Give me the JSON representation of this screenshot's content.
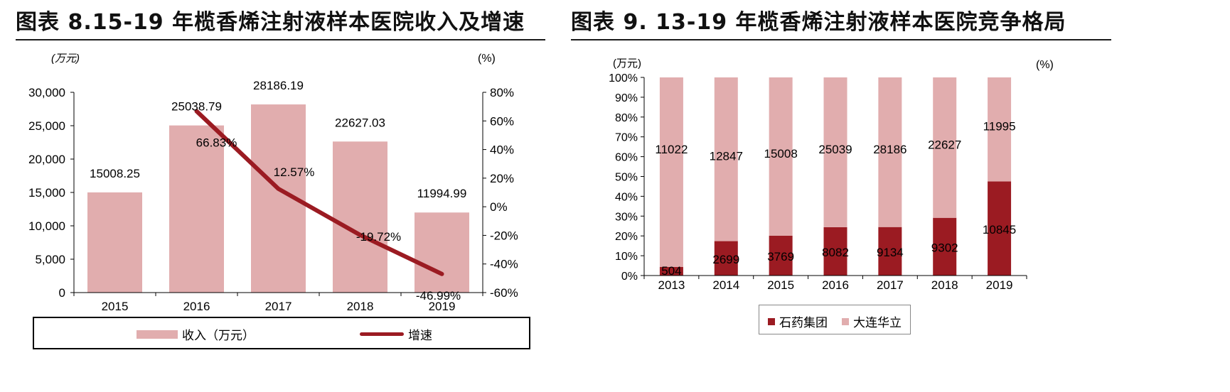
{
  "left": {
    "title": "图表 8.15-19 年榄香烯注射液样本医院收入及增速",
    "unit_left": "(万元)",
    "unit_right": "(%)",
    "legend": {
      "bar": "收入（万元）",
      "line": "增速"
    }
  },
  "right": {
    "title": "图表 9. 13-19 年榄香烯注射液样本医院竞争格局",
    "unit_left": "(万元)",
    "unit_right": "(%)"
  },
  "colors": {
    "bar_light": "#e1adae",
    "line_dark": "#9b1b22",
    "bar_dark": "#9b1b22"
  },
  "chart_data": [
    {
      "type": "bar",
      "categories": [
        "2015",
        "2016",
        "2017",
        "2018",
        "2019"
      ],
      "series": [
        {
          "name": "收入（万元）",
          "values": [
            15008.25,
            25038.79,
            28186.19,
            22627.03,
            11994.99
          ],
          "labels": [
            "15008.25",
            "25038.79",
            "28186.19",
            "22627.03",
            "11994.99"
          ],
          "axis": "left",
          "kind": "bar"
        },
        {
          "name": "增速",
          "x": [
            "2016",
            "2017",
            "2018",
            "2019"
          ],
          "values": [
            66.83,
            12.57,
            -19.72,
            -46.99
          ],
          "labels": [
            "66.83%",
            "12.57%",
            "-19.72%",
            "-46.99%"
          ],
          "axis": "right",
          "kind": "line"
        }
      ],
      "ylim": [
        0,
        30000
      ],
      "yticks": [
        "0",
        "5,000",
        "10,000",
        "15,000",
        "20,000",
        "25,000",
        "30,000"
      ],
      "y2lim": [
        -60,
        80
      ],
      "y2ticks": [
        "-60%",
        "-40%",
        "-20%",
        "0%",
        "20%",
        "40%",
        "60%",
        "80%"
      ],
      "legend_position": "bottom"
    },
    {
      "type": "bar",
      "stacked": "percent",
      "categories": [
        "2013",
        "2014",
        "2015",
        "2016",
        "2017",
        "2018",
        "2019"
      ],
      "series": [
        {
          "name": "石药集团",
          "values": [
            504,
            2699,
            3769,
            8082,
            9134,
            9302,
            10845
          ]
        },
        {
          "name": "大连华立",
          "values": [
            11022,
            12847,
            15008,
            25039,
            28186,
            22627,
            11995
          ]
        }
      ],
      "ylim": [
        0,
        100
      ],
      "yticks": [
        "0%",
        "10%",
        "20%",
        "30%",
        "40%",
        "50%",
        "60%",
        "70%",
        "80%",
        "90%",
        "100%"
      ],
      "legend_position": "bottom"
    }
  ]
}
